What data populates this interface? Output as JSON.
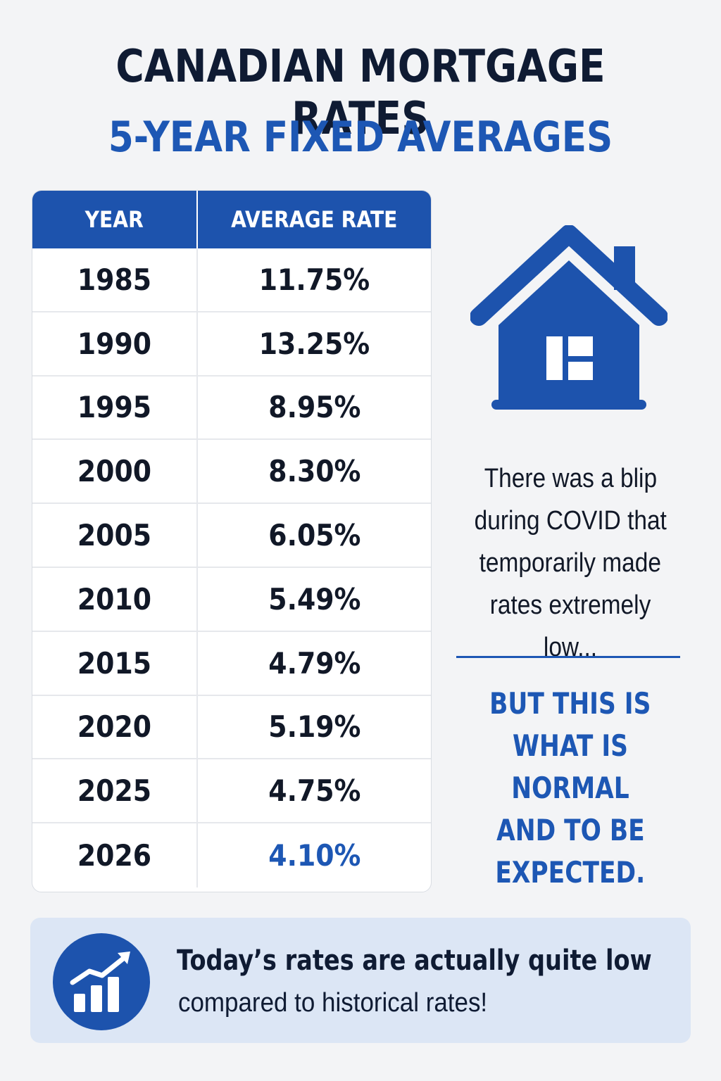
{
  "header": {
    "title": "CANADIAN MORTGAGE RATES",
    "subtitle": "5-YEAR FIXED AVERAGES"
  },
  "table": {
    "columns": [
      "YEAR",
      "AVERAGE RATE"
    ],
    "rows": [
      {
        "year": "1985",
        "rate": "11.75%"
      },
      {
        "year": "1990",
        "rate": "13.25%"
      },
      {
        "year": "1995",
        "rate": "8.95%"
      },
      {
        "year": "2000",
        "rate": "8.30%"
      },
      {
        "year": "2005",
        "rate": "6.05%"
      },
      {
        "year": "2010",
        "rate": "5.49%"
      },
      {
        "year": "2015",
        "rate": "4.79%"
      },
      {
        "year": "2020",
        "rate": "5.19%"
      },
      {
        "year": "2025",
        "rate": "4.75%"
      },
      {
        "year": "2026",
        "rate": "4.10%",
        "highlight": true
      }
    ]
  },
  "side": {
    "house_icon": "house-icon",
    "note_lines": [
      "There was a blip",
      "during COVID that",
      "temporarily made",
      "rates extremely low..."
    ],
    "emphasis_lines": [
      "BUT THIS IS",
      "WHAT IS NORMAL",
      "AND TO BE",
      "EXPECTED."
    ]
  },
  "footer": {
    "icon": "trending-up-chart-icon",
    "line1": "Today’s rates are actually quite low",
    "line2": "compared to historical rates!"
  },
  "colors": {
    "brand_blue": "#1d53ad",
    "accent_blue": "#1d57b4",
    "dark_text": "#0f1b33",
    "footer_bg": "#dce6f5"
  }
}
